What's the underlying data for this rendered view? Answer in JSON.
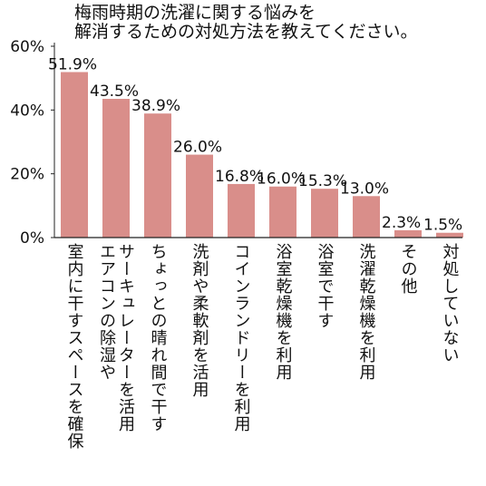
{
  "title_lines": [
    "梅雨時期の洗濯に関する悩みを",
    "解消するための対処方法を教えてください。"
  ],
  "chart_data": {
    "type": "bar",
    "title": "梅雨時期の洗濯に関する悩みを解消するための対処方法を教えてください。",
    "categories": [
      "室内に干すスペースを確保",
      "エアコンの除湿やサーキュレーターを活用",
      "ちょっとの晴れ間で干す",
      "洗剤や柔軟剤を活用",
      "コインランドリーを利用",
      "浴室乾燥機を利用",
      "浴室で干す",
      "洗濯乾燥機を利用",
      "その他",
      "対処していない"
    ],
    "category_lines": [
      [
        "室内に干すスペースを確保"
      ],
      [
        "エアコンの除湿や",
        "サーキュレーターを活用"
      ],
      [
        "ちょっとの晴れ間で干す"
      ],
      [
        "洗剤や柔軟剤を活用"
      ],
      [
        "コインランドリーを利用"
      ],
      [
        "浴室乾燥機を利用"
      ],
      [
        "浴室で干す"
      ],
      [
        "洗濯乾燥機を利用"
      ],
      [
        "その他"
      ],
      [
        "対処していない"
      ]
    ],
    "values": [
      51.9,
      43.5,
      38.9,
      26.0,
      16.8,
      16.0,
      15.3,
      13.0,
      2.3,
      1.5
    ],
    "value_labels": [
      "51.9%",
      "43.5%",
      "38.9%",
      "26.0%",
      "16.8%",
      "16.0%",
      "15.3%",
      "13.0%",
      "2.3%",
      "1.5%"
    ],
    "yticks": [
      0,
      20,
      40,
      60
    ],
    "ytick_labels": [
      "0%",
      "20%",
      "40%",
      "60%"
    ],
    "ylim": [
      0,
      60
    ],
    "xlabel": "",
    "ylabel": "",
    "grid": false,
    "bar_color": "#d98e8a",
    "axis_color": "#222222"
  }
}
